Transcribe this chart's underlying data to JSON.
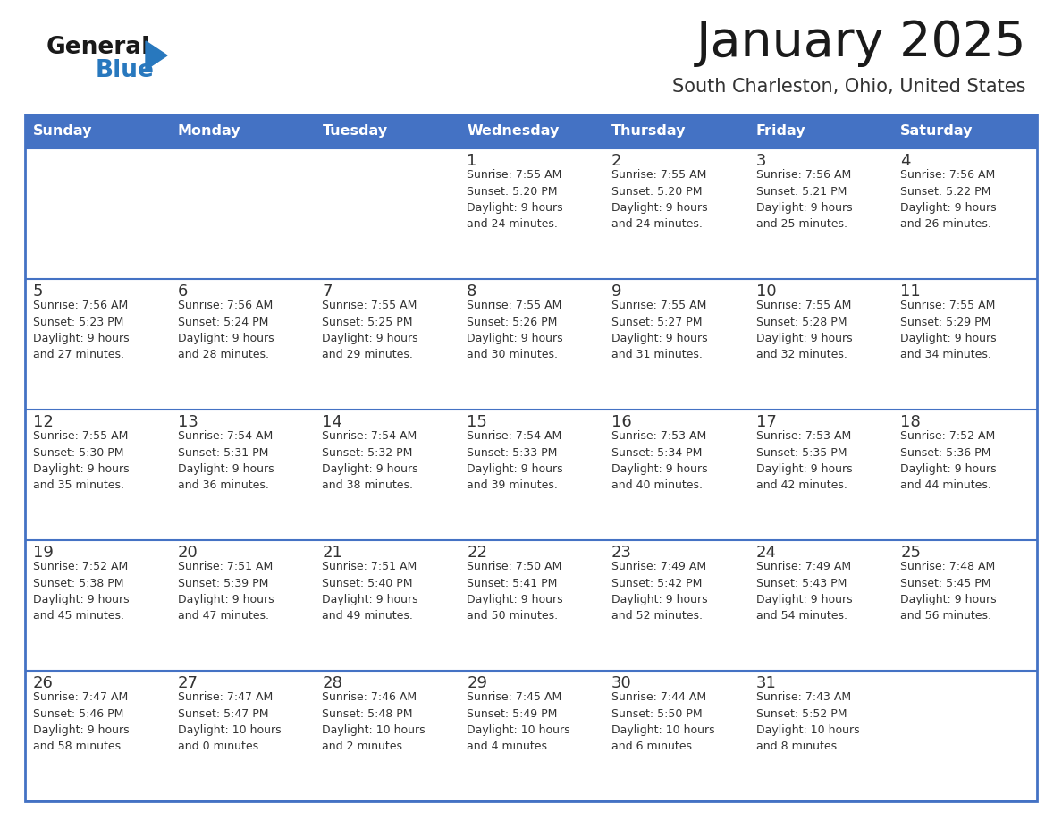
{
  "title": "January 2025",
  "subtitle": "South Charleston, Ohio, United States",
  "header_color": "#4472C4",
  "header_text_color": "#FFFFFF",
  "days_of_week": [
    "Sunday",
    "Monday",
    "Tuesday",
    "Wednesday",
    "Thursday",
    "Friday",
    "Saturday"
  ],
  "background_color": "#FFFFFF",
  "cell_bg": "#FFFFFF",
  "cell_text_color": "#333333",
  "border_color": "#4472C4",
  "separator_color": "#4472C4",
  "logo_black_color": "#1a1a1a",
  "logo_blue_color": "#2878BE",
  "calendar_data": [
    [
      {
        "day": "",
        "info": ""
      },
      {
        "day": "",
        "info": ""
      },
      {
        "day": "",
        "info": ""
      },
      {
        "day": "1",
        "info": "Sunrise: 7:55 AM\nSunset: 5:20 PM\nDaylight: 9 hours\nand 24 minutes."
      },
      {
        "day": "2",
        "info": "Sunrise: 7:55 AM\nSunset: 5:20 PM\nDaylight: 9 hours\nand 24 minutes."
      },
      {
        "day": "3",
        "info": "Sunrise: 7:56 AM\nSunset: 5:21 PM\nDaylight: 9 hours\nand 25 minutes."
      },
      {
        "day": "4",
        "info": "Sunrise: 7:56 AM\nSunset: 5:22 PM\nDaylight: 9 hours\nand 26 minutes."
      }
    ],
    [
      {
        "day": "5",
        "info": "Sunrise: 7:56 AM\nSunset: 5:23 PM\nDaylight: 9 hours\nand 27 minutes."
      },
      {
        "day": "6",
        "info": "Sunrise: 7:56 AM\nSunset: 5:24 PM\nDaylight: 9 hours\nand 28 minutes."
      },
      {
        "day": "7",
        "info": "Sunrise: 7:55 AM\nSunset: 5:25 PM\nDaylight: 9 hours\nand 29 minutes."
      },
      {
        "day": "8",
        "info": "Sunrise: 7:55 AM\nSunset: 5:26 PM\nDaylight: 9 hours\nand 30 minutes."
      },
      {
        "day": "9",
        "info": "Sunrise: 7:55 AM\nSunset: 5:27 PM\nDaylight: 9 hours\nand 31 minutes."
      },
      {
        "day": "10",
        "info": "Sunrise: 7:55 AM\nSunset: 5:28 PM\nDaylight: 9 hours\nand 32 minutes."
      },
      {
        "day": "11",
        "info": "Sunrise: 7:55 AM\nSunset: 5:29 PM\nDaylight: 9 hours\nand 34 minutes."
      }
    ],
    [
      {
        "day": "12",
        "info": "Sunrise: 7:55 AM\nSunset: 5:30 PM\nDaylight: 9 hours\nand 35 minutes."
      },
      {
        "day": "13",
        "info": "Sunrise: 7:54 AM\nSunset: 5:31 PM\nDaylight: 9 hours\nand 36 minutes."
      },
      {
        "day": "14",
        "info": "Sunrise: 7:54 AM\nSunset: 5:32 PM\nDaylight: 9 hours\nand 38 minutes."
      },
      {
        "day": "15",
        "info": "Sunrise: 7:54 AM\nSunset: 5:33 PM\nDaylight: 9 hours\nand 39 minutes."
      },
      {
        "day": "16",
        "info": "Sunrise: 7:53 AM\nSunset: 5:34 PM\nDaylight: 9 hours\nand 40 minutes."
      },
      {
        "day": "17",
        "info": "Sunrise: 7:53 AM\nSunset: 5:35 PM\nDaylight: 9 hours\nand 42 minutes."
      },
      {
        "day": "18",
        "info": "Sunrise: 7:52 AM\nSunset: 5:36 PM\nDaylight: 9 hours\nand 44 minutes."
      }
    ],
    [
      {
        "day": "19",
        "info": "Sunrise: 7:52 AM\nSunset: 5:38 PM\nDaylight: 9 hours\nand 45 minutes."
      },
      {
        "day": "20",
        "info": "Sunrise: 7:51 AM\nSunset: 5:39 PM\nDaylight: 9 hours\nand 47 minutes."
      },
      {
        "day": "21",
        "info": "Sunrise: 7:51 AM\nSunset: 5:40 PM\nDaylight: 9 hours\nand 49 minutes."
      },
      {
        "day": "22",
        "info": "Sunrise: 7:50 AM\nSunset: 5:41 PM\nDaylight: 9 hours\nand 50 minutes."
      },
      {
        "day": "23",
        "info": "Sunrise: 7:49 AM\nSunset: 5:42 PM\nDaylight: 9 hours\nand 52 minutes."
      },
      {
        "day": "24",
        "info": "Sunrise: 7:49 AM\nSunset: 5:43 PM\nDaylight: 9 hours\nand 54 minutes."
      },
      {
        "day": "25",
        "info": "Sunrise: 7:48 AM\nSunset: 5:45 PM\nDaylight: 9 hours\nand 56 minutes."
      }
    ],
    [
      {
        "day": "26",
        "info": "Sunrise: 7:47 AM\nSunset: 5:46 PM\nDaylight: 9 hours\nand 58 minutes."
      },
      {
        "day": "27",
        "info": "Sunrise: 7:47 AM\nSunset: 5:47 PM\nDaylight: 10 hours\nand 0 minutes."
      },
      {
        "day": "28",
        "info": "Sunrise: 7:46 AM\nSunset: 5:48 PM\nDaylight: 10 hours\nand 2 minutes."
      },
      {
        "day": "29",
        "info": "Sunrise: 7:45 AM\nSunset: 5:49 PM\nDaylight: 10 hours\nand 4 minutes."
      },
      {
        "day": "30",
        "info": "Sunrise: 7:44 AM\nSunset: 5:50 PM\nDaylight: 10 hours\nand 6 minutes."
      },
      {
        "day": "31",
        "info": "Sunrise: 7:43 AM\nSunset: 5:52 PM\nDaylight: 10 hours\nand 8 minutes."
      },
      {
        "day": "",
        "info": ""
      }
    ]
  ]
}
